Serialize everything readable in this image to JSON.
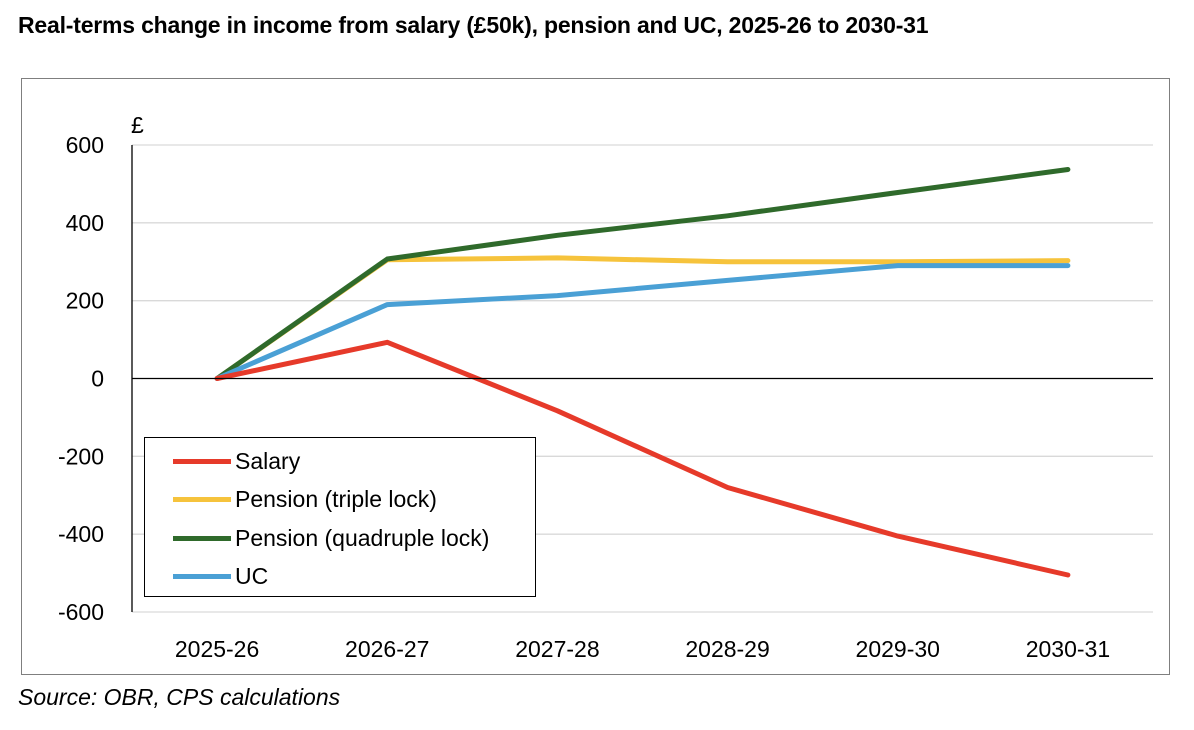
{
  "title": "Real-terms change in income from salary (£50k), pension and UC, 2025-26 to 2030-31",
  "source": "Source: OBR, CPS calculations",
  "colors": {
    "salary": "#e63a2a",
    "triple": "#f6c33c",
    "quadruple": "#2f6a2b",
    "uc": "#4aa0d5"
  },
  "chart_data": {
    "type": "line",
    "title": "Real-terms change in income from salary (£50k), pension and UC, 2025-26 to 2030-31",
    "ylabel": "£",
    "xlabel": "",
    "categories": [
      "2025-26",
      "2026-27",
      "2027-28",
      "2028-29",
      "2029-30",
      "2030-31"
    ],
    "ylim": [
      -600,
      600
    ],
    "yticks": [
      600,
      400,
      200,
      0,
      -200,
      -400,
      -600
    ],
    "ytick_labels": [
      "600",
      "400",
      "200",
      "0",
      "-200",
      "-400",
      "-600"
    ],
    "grid": true,
    "legend_position": "bottom-left",
    "series": [
      {
        "name": "Salary",
        "key": "salary",
        "values": [
          0,
          93,
          -83,
          -280,
          -405,
          -505
        ]
      },
      {
        "name": "Pension (triple lock)",
        "key": "triple",
        "values": [
          0,
          305,
          310,
          300,
          300,
          303
        ]
      },
      {
        "name": "Pension (quadruple lock)",
        "key": "quadruple",
        "values": [
          0,
          307,
          368,
          418,
          478,
          537
        ]
      },
      {
        "name": "UC",
        "key": "uc",
        "values": [
          0,
          190,
          213,
          252,
          290,
          290
        ]
      }
    ]
  }
}
